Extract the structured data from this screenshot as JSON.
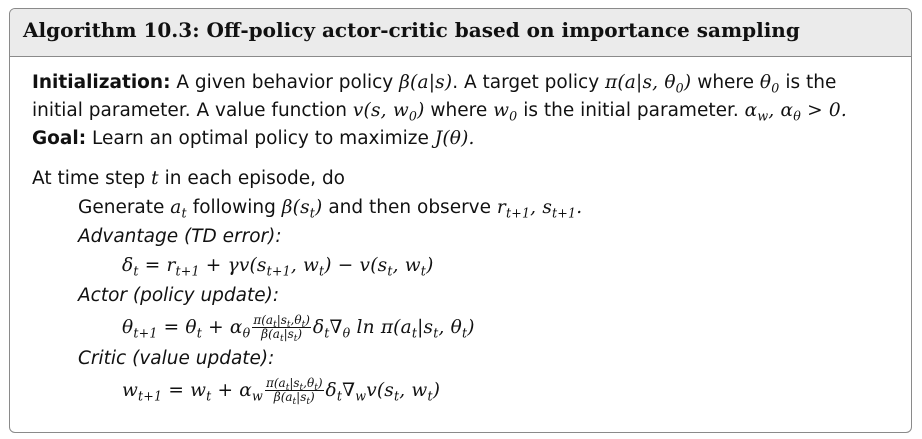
{
  "algorithm": {
    "title": "Algorithm 10.3: Off-policy actor-critic based on importance sampling"
  },
  "initialization": {
    "label": "Initialization:",
    "l1_t1": "A given behavior policy",
    "l1_m1": "β(a|s)",
    "l1_t2": ". A target policy",
    "l1_m2": "π(a|s, θ",
    "l1_m2_sub": "0",
    "l1_m2_end": ")",
    "l1_t3": "where",
    "l1_m3": "θ",
    "l1_m3_sub": "0",
    "l1_t4": "is the",
    "l2_t1": "initial parameter. A value function",
    "l2_m1": "v(s, w",
    "l2_m1_sub": "0",
    "l2_m1_end": ")",
    "l2_t2": "where",
    "l2_m2": "w",
    "l2_m2_sub": "0",
    "l2_t3": "is the initial parameter.",
    "l2_m3a": "α",
    "l2_m3a_sub": "w",
    "l2_m3b": ", α",
    "l2_m3b_sub": "θ",
    "l2_m3c": "> 0."
  },
  "goal": {
    "label": "Goal:",
    "text": "Learn an optimal policy to maximize",
    "math": "J(θ)."
  },
  "loop": {
    "t1": "At time step",
    "m1": "t",
    "t2": "in each episode, do"
  },
  "generate": {
    "t1": "Generate",
    "m1": "a",
    "m1_sub": "t",
    "t2": "following",
    "m2": "β(s",
    "m2_sub": "t",
    "m2_end": ")",
    "t3": "and then observe",
    "m3": "r",
    "m3_sub": "t+1",
    "m4": ", s",
    "m4_sub": "t+1",
    "m4_end": "."
  },
  "advantage": {
    "heading": "Advantage (TD error):",
    "eq_a": "δ",
    "eq_a_sub": "t",
    "eq_b": " = r",
    "eq_b_sub": "t+1",
    "eq_c": " + γv(s",
    "eq_c_sub": "t+1",
    "eq_d": ", w",
    "eq_d_sub": "t",
    "eq_e": ") − v(s",
    "eq_e_sub": "t",
    "eq_f": ", w",
    "eq_f_sub": "t",
    "eq_g": ")"
  },
  "actor": {
    "heading": "Actor (policy update):",
    "eq_a": "θ",
    "eq_a_sub": "t+1",
    "eq_b": " = θ",
    "eq_b_sub": "t",
    "eq_c": " + α",
    "eq_c_sub": "θ",
    "frac_num": "π(a_t|s_t,θ_t)",
    "frac_den": "β(a_t|s_t)",
    "eq_d": "δ",
    "eq_d_sub": "t",
    "eq_e": "∇",
    "eq_e_sub": "θ",
    "eq_f": " ln π(a",
    "eq_f_sub": "t",
    "eq_g": "|s",
    "eq_g_sub": "t",
    "eq_h": ", θ",
    "eq_h_sub": "t",
    "eq_i": ")"
  },
  "critic": {
    "heading": "Critic (value update):",
    "eq_a": "w",
    "eq_a_sub": "t+1",
    "eq_b": " = w",
    "eq_b_sub": "t",
    "eq_c": " + α",
    "eq_c_sub": "w",
    "frac_num": "π(a_t|s_t,θ_t)",
    "frac_den": "β(a_t|s_t)",
    "eq_d": "δ",
    "eq_d_sub": "t",
    "eq_e": "∇",
    "eq_e_sub": "w",
    "eq_f": "v(s",
    "eq_f_sub": "t",
    "eq_g": ", w",
    "eq_g_sub": "t",
    "eq_h": ")"
  }
}
